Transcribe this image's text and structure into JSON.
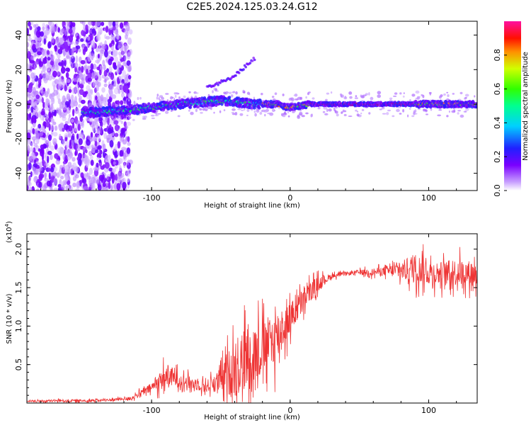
{
  "title": "C2E5.2024.125.03.24.G12",
  "colors": {
    "snr_line": "#ee3333",
    "frame": "#000000"
  },
  "chart_data": [
    {
      "type": "heatmap",
      "xlabel": "Height of straight line (km)",
      "ylabel": "Frequency (Hz)",
      "xlim": [
        -190,
        135
      ],
      "ylim": [
        -50,
        48
      ],
      "xticks": [
        -100,
        0,
        100
      ],
      "yticks": [
        -40,
        -20,
        0,
        20,
        40
      ],
      "xtick_labels": [
        "-100",
        "0",
        "100"
      ],
      "ytick_labels": [
        "-40",
        "-20",
        "0",
        "20",
        "40"
      ],
      "grid": false,
      "colorbar": {
        "label": "Normalized spectral amplitude",
        "range": [
          0,
          1
        ],
        "ticks": [
          0.0,
          0.2,
          0.4,
          0.6,
          0.8
        ],
        "tick_labels": [
          "0.0",
          "0.2",
          "0.4",
          "0.6",
          "0.8"
        ]
      },
      "features": {
        "noise_region_x": [
          -190,
          -115
        ],
        "trace_start_x": -150,
        "trace_path": [
          [
            -150,
            -5
          ],
          [
            -110,
            -3
          ],
          [
            -80,
            0
          ],
          [
            -50,
            2
          ],
          [
            -25,
            0
          ],
          [
            -10,
            0
          ],
          [
            0,
            -2
          ],
          [
            15,
            0
          ],
          [
            135,
            0
          ]
        ],
        "side_branch": [
          [
            -60,
            10
          ],
          [
            -45,
            14
          ],
          [
            -35,
            20
          ],
          [
            -25,
            27
          ]
        ]
      }
    },
    {
      "type": "line",
      "xlabel": "Height of straight line (km)",
      "ylabel": "SNR (10 * v/v)",
      "y_multiplier": "(x10",
      "y_multiplier_exp": "4",
      "y_multiplier_close": ")",
      "xlim": [
        -190,
        135
      ],
      "ylim": [
        0.0,
        2.2
      ],
      "xticks": [
        -100,
        0,
        100
      ],
      "yticks": [
        0.5,
        1.0,
        1.5,
        2.0
      ],
      "xtick_labels": [
        "-100",
        "0",
        "100"
      ],
      "ytick_labels": [
        "0.5",
        "1.0",
        "1.5",
        "2.0"
      ],
      "grid": false,
      "series": [
        {
          "x": [
            -190,
            -170,
            -150,
            -130,
            -115,
            -100,
            -90,
            -80,
            -70,
            -60,
            -50,
            -40,
            -30,
            -20,
            -10,
            0,
            10,
            20,
            30,
            40,
            50,
            60,
            70,
            80,
            90,
            100,
            110,
            120,
            135
          ],
          "y": [
            0.02,
            0.03,
            0.03,
            0.04,
            0.06,
            0.2,
            0.35,
            0.3,
            0.25,
            0.22,
            0.3,
            0.45,
            0.6,
            0.7,
            0.85,
            1.1,
            1.35,
            1.55,
            1.65,
            1.68,
            1.7,
            1.7,
            1.72,
            1.72,
            1.75,
            1.7,
            1.68,
            1.7,
            1.68
          ],
          "spread": [
            0.01,
            0.02,
            0.02,
            0.02,
            0.03,
            0.08,
            0.2,
            0.12,
            0.1,
            0.1,
            0.2,
            0.5,
            0.55,
            0.45,
            0.45,
            0.25,
            0.2,
            0.12,
            0.04,
            0.03,
            0.04,
            0.06,
            0.08,
            0.15,
            0.25,
            0.2,
            0.2,
            0.22,
            0.2
          ]
        }
      ]
    }
  ]
}
